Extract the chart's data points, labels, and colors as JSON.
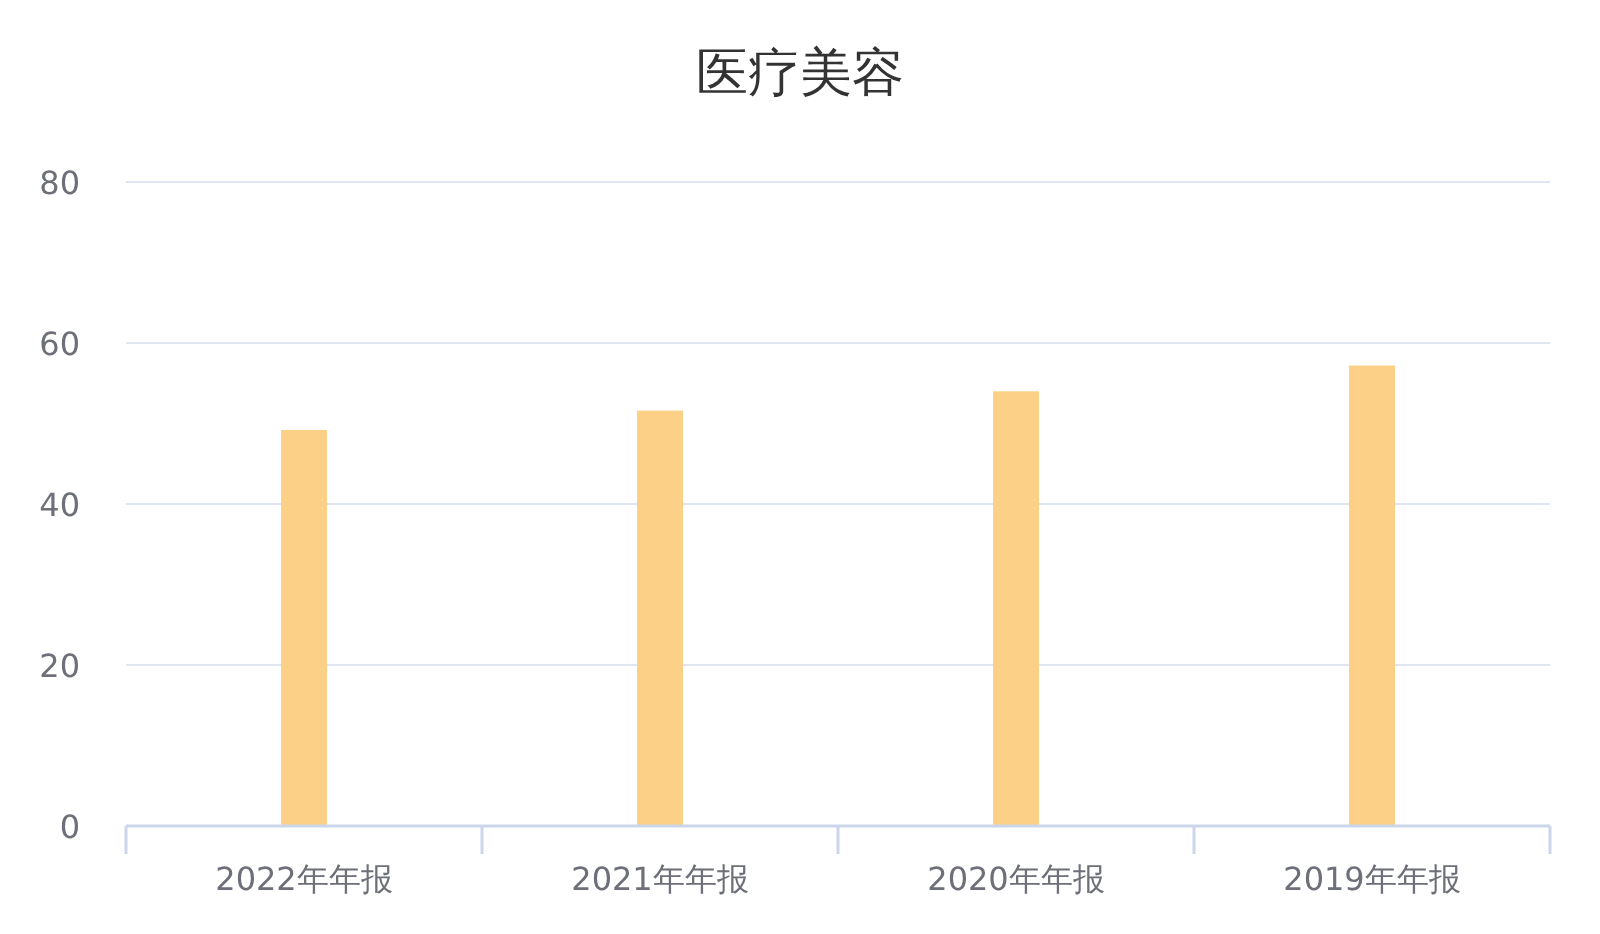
{
  "chart_data": {
    "type": "bar",
    "title": "医疗美容",
    "categories": [
      "2022年年报",
      "2021年年报",
      "2020年年报",
      "2019年年报"
    ],
    "values": [
      49.2,
      51.6,
      54.0,
      57.2
    ],
    "color": "#fcd086",
    "ylim": [
      0,
      80
    ],
    "yticks": [
      0,
      20,
      40,
      60,
      80
    ],
    "grid": "y"
  }
}
